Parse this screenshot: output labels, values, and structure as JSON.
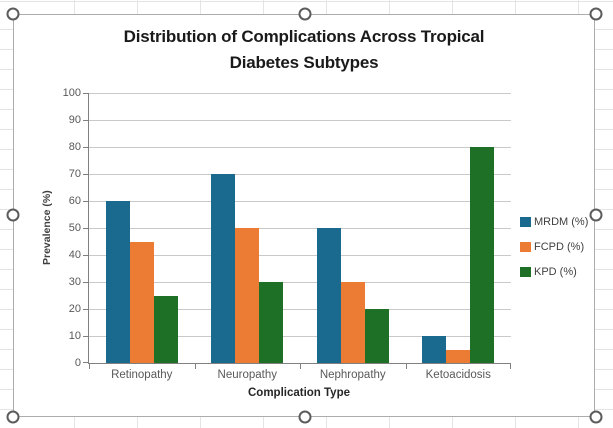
{
  "chart_data": {
    "type": "bar",
    "title": "Distribution of Complications Across Tropical Diabetes Subtypes",
    "title_lines": [
      "Distribution of Complications Across Tropical",
      "Diabetes Subtypes"
    ],
    "categories": [
      "Retinopathy",
      "Neuropathy",
      "Nephropathy",
      "Ketoacidosis"
    ],
    "series": [
      {
        "name": "MRDM (%)",
        "color": "#1a698e",
        "values": [
          60,
          70,
          50,
          10
        ]
      },
      {
        "name": "FCPD (%)",
        "color": "#ec7b33",
        "values": [
          45,
          50,
          30,
          5
        ]
      },
      {
        "name": "KPD (%)",
        "color": "#1e7027",
        "values": [
          25,
          30,
          20,
          80
        ]
      }
    ],
    "xlabel": "Complication Type",
    "ylabel": "Prevalence (%)",
    "ylim": [
      0,
      100
    ],
    "yticks": [
      0,
      10,
      20,
      30,
      40,
      50,
      60,
      70,
      80,
      90,
      100
    ],
    "grid": true,
    "legend_position": "right"
  },
  "ui": {
    "axis_color": "#808080",
    "gridline_color": "#c9c9c9",
    "tick_label_color": "#595959",
    "chart_border_color": "#acacac",
    "selection_handle_count": 8
  }
}
